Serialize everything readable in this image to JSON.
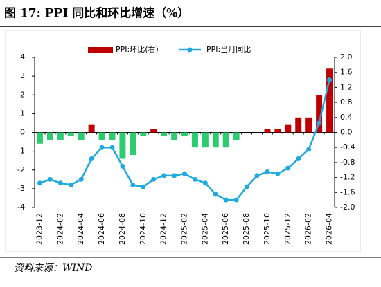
{
  "chart_data": {
    "type": "bar_line",
    "title": "图 17:  PPI 同比和环比增速（%）",
    "source": "资料来源：WIND",
    "categories": [
      "2023-12",
      null,
      "2024-02",
      null,
      "2024-04",
      null,
      "2024-06",
      null,
      "2024-08",
      null,
      "2024-10",
      null,
      "2024-12",
      null,
      "2025-02",
      null,
      "2025-04",
      null,
      "2025-06",
      null,
      "2025-08",
      null,
      "2025-10",
      null,
      "2025-12",
      null,
      "2026-02",
      null,
      "2026-04"
    ],
    "series": [
      {
        "name": "PPI:环比(右)",
        "type": "bar",
        "axis": "y2",
        "color": "#c00000",
        "negative_color": "#2ecc71",
        "values": [
          -0.3,
          -0.2,
          -0.2,
          -0.1,
          -0.2,
          0.2,
          -0.2,
          -0.2,
          -0.7,
          -0.6,
          -0.1,
          0.1,
          -0.1,
          -0.2,
          -0.1,
          -0.4,
          -0.4,
          -0.4,
          -0.4,
          -0.2,
          0.0,
          0.0,
          0.1,
          0.1,
          0.2,
          0.4,
          0.4,
          1.0,
          1.7
        ]
      },
      {
        "name": "PPI:当月同比",
        "type": "line",
        "color": "#1fa9e1",
        "values": [
          -2.7,
          -2.5,
          -2.7,
          -2.8,
          -2.5,
          -1.4,
          -0.8,
          -0.8,
          -1.8,
          -2.8,
          -2.9,
          -2.5,
          -2.3,
          -2.3,
          -2.2,
          -2.5,
          -2.7,
          -3.3,
          -3.6,
          -3.6,
          -2.9,
          -2.3,
          -2.1,
          -2.2,
          -1.9,
          -1.4,
          -0.9,
          0.5,
          2.8
        ]
      }
    ],
    "ylim": [
      -4,
      4
    ],
    "yticks": [
      -4,
      -3,
      -2,
      -1,
      0,
      1,
      2,
      3,
      4
    ],
    "y2lim": [
      -2,
      2
    ],
    "y2ticks": [
      {
        "value": -2,
        "label": "-2.0"
      },
      {
        "value": -1.6,
        "label": "-1.6"
      },
      {
        "value": -1.2,
        "label": "-1.2"
      },
      {
        "value": -0.8,
        "label": "-0.8"
      },
      {
        "value": -0.4,
        "label": "-0.4"
      },
      {
        "value": 0,
        "label": "0.0"
      },
      {
        "value": 0.4,
        "label": "0.4"
      },
      {
        "value": 0.8,
        "label": "0.8"
      },
      {
        "value": 1.2,
        "label": "1.2"
      },
      {
        "value": 1.6,
        "label": "1.6"
      },
      {
        "value": 2,
        "label": "2.0"
      }
    ]
  }
}
